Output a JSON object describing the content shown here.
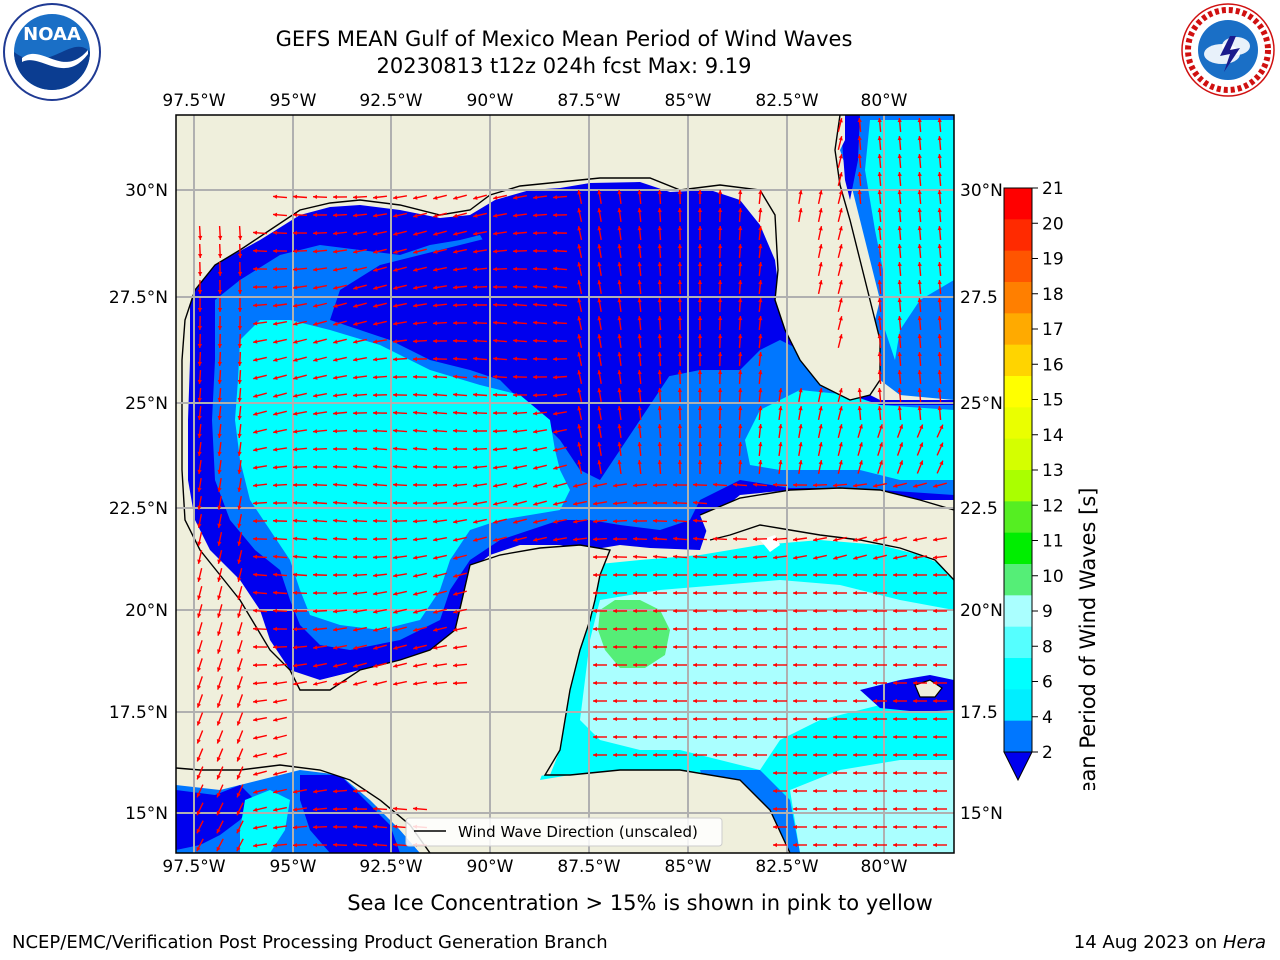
{
  "header": {
    "title_line1": "GEFS MEAN Gulf of Mexico Mean Period of Wind Waves",
    "title_line2": "20230813 t12z 024h fcst   Max: 9.19"
  },
  "logos": {
    "left": {
      "name": "NOARA-logo",
      "text": "NOAA",
      "ring_text": "NATIONAL OCEANIC AND ATMOSPHERIC ADMINISTRATION · U.S. DEPARTMENT OF COMMERCE"
    },
    "right": {
      "name": "nws-logo",
      "ring_text": "NATIONAL WEATHER SERVICE"
    }
  },
  "map": {
    "lon_labels": [
      "97.5°W",
      "95°W",
      "92.5°W",
      "90°W",
      "87.5°W",
      "85°W",
      "82.5°W",
      "80°W"
    ],
    "lat_labels_left": [
      "30°N",
      "27.5°N",
      "25°N",
      "22.5°N",
      "20°N",
      "17.5°N",
      "15°N"
    ],
    "lat_labels_right": [
      "30°N",
      "27.5",
      "25°N",
      "22.5",
      "20°N",
      "17.5",
      "15°N"
    ],
    "legend_label": "Wind Wave Direction (unscaled)",
    "land_color": "#efefdc",
    "arrow_color": "#ff0000"
  },
  "colorbar": {
    "label": "Mean Period of Wind Waves [s]",
    "ticks": [
      "21",
      "20",
      "19",
      "18",
      "17",
      "16",
      "15",
      "14",
      "13",
      "12",
      "11",
      "10",
      "9",
      "8",
      "6",
      "4",
      "2"
    ],
    "colors": [
      "#ff0000",
      "#ff2a00",
      "#ff5500",
      "#ff7f00",
      "#ffaa00",
      "#ffd400",
      "#ffff00",
      "#eaff00",
      "#d4ff00",
      "#aaff00",
      "#55ee22",
      "#00ee00",
      "#55ee77",
      "#aaffff",
      "#55ffff",
      "#00ffff",
      "#00eeff",
      "#0077ff",
      "#0000ee"
    ]
  },
  "caption": "Sea Ice Concentration > 15% is shown in pink to yellow",
  "footer": {
    "left": "NCEP/EMC/Verification Post Processing Product Generation Branch",
    "right_date": "14 Aug 2023 on ",
    "right_host": "Hera"
  }
}
